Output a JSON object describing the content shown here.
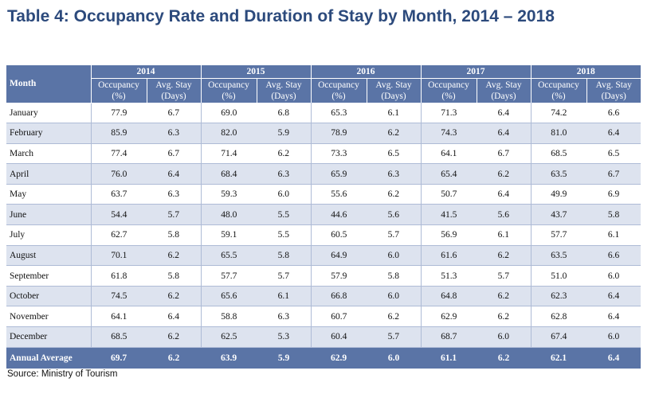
{
  "title": "Table 4: Occupancy Rate and Duration of Stay by Month, 2014 – 2018",
  "source": "Source: Ministry of Tourism",
  "colors": {
    "title": "#2c4a7c",
    "header_bg": "#5a74a6",
    "row_alt_bg": "#dde3ef",
    "row_border": "#aebbd6"
  },
  "header": {
    "month_label": "Month",
    "years": [
      "2014",
      "2015",
      "2016",
      "2017",
      "2018"
    ],
    "occ_label": [
      "Occupancy",
      "(%)"
    ],
    "stay_label": [
      "Avg. Stay",
      "(Days)"
    ]
  },
  "rows": [
    {
      "month": "January",
      "values": [
        "77.9",
        "6.7",
        "69.0",
        "6.8",
        "65.3",
        "6.1",
        "71.3",
        "6.4",
        "74.2",
        "6.6"
      ]
    },
    {
      "month": "February",
      "values": [
        "85.9",
        "6.3",
        "82.0",
        "5.9",
        "78.9",
        "6.2",
        "74.3",
        "6.4",
        "81.0",
        "6.4"
      ]
    },
    {
      "month": "March",
      "values": [
        "77.4",
        "6.7",
        "71.4",
        "6.2",
        "73.3",
        "6.5",
        "64.1",
        "6.7",
        "68.5",
        "6.5"
      ]
    },
    {
      "month": "April",
      "values": [
        "76.0",
        "6.4",
        "68.4",
        "6.3",
        "65.9",
        "6.3",
        "65.4",
        "6.2",
        "63.5",
        "6.7"
      ]
    },
    {
      "month": "May",
      "values": [
        "63.7",
        "6.3",
        "59.3",
        "6.0",
        "55.6",
        "6.2",
        "50.7",
        "6.4",
        "49.9",
        "6.9"
      ]
    },
    {
      "month": "June",
      "values": [
        "54.4",
        "5.7",
        "48.0",
        "5.5",
        "44.6",
        "5.6",
        "41.5",
        "5.6",
        "43.7",
        "5.8"
      ]
    },
    {
      "month": "July",
      "values": [
        "62.7",
        "5.8",
        "59.1",
        "5.5",
        "60.5",
        "5.7",
        "56.9",
        "6.1",
        "57.7",
        "6.1"
      ]
    },
    {
      "month": "August",
      "values": [
        "70.1",
        "6.2",
        "65.5",
        "5.8",
        "64.9",
        "6.0",
        "61.6",
        "6.2",
        "63.5",
        "6.6"
      ]
    },
    {
      "month": "September",
      "values": [
        "61.8",
        "5.8",
        "57.7",
        "5.7",
        "57.9",
        "5.8",
        "51.3",
        "5.7",
        "51.0",
        "6.0"
      ]
    },
    {
      "month": "October",
      "values": [
        "74.5",
        "6.2",
        "65.6",
        "6.1",
        "66.8",
        "6.0",
        "64.8",
        "6.2",
        "62.3",
        "6.4"
      ]
    },
    {
      "month": "November",
      "values": [
        "64.1",
        "6.4",
        "58.8",
        "6.3",
        "60.7",
        "6.2",
        "62.9",
        "6.2",
        "62.8",
        "6.4"
      ]
    },
    {
      "month": "December",
      "values": [
        "68.5",
        "6.2",
        "62.5",
        "5.3",
        "60.4",
        "5.7",
        "68.7",
        "6.0",
        "67.4",
        "6.0"
      ]
    }
  ],
  "annual_average": {
    "label": "Annual Average",
    "values": [
      "69.7",
      "6.2",
      "63.9",
      "5.9",
      "62.9",
      "6.0",
      "61.1",
      "6.2",
      "62.1",
      "6.4"
    ]
  }
}
